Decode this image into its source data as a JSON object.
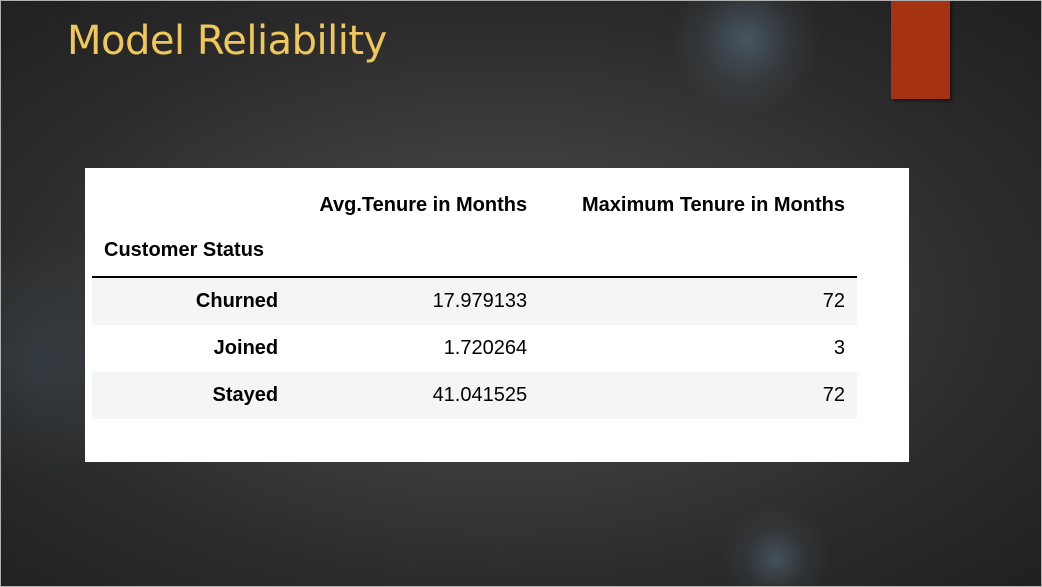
{
  "slide": {
    "title": "Model Reliability",
    "accent_color": "#a63214",
    "title_color": "#f0c75a"
  },
  "table": {
    "index_name": "Customer Status",
    "columns": [
      "Avg.Tenure in Months",
      "Maximum Tenure in Months"
    ],
    "rows": [
      {
        "status": "Churned",
        "avg_tenure": "17.979133",
        "max_tenure": "72"
      },
      {
        "status": "Joined",
        "avg_tenure": "1.720264",
        "max_tenure": "3"
      },
      {
        "status": "Stayed",
        "avg_tenure": "41.041525",
        "max_tenure": "72"
      }
    ]
  }
}
